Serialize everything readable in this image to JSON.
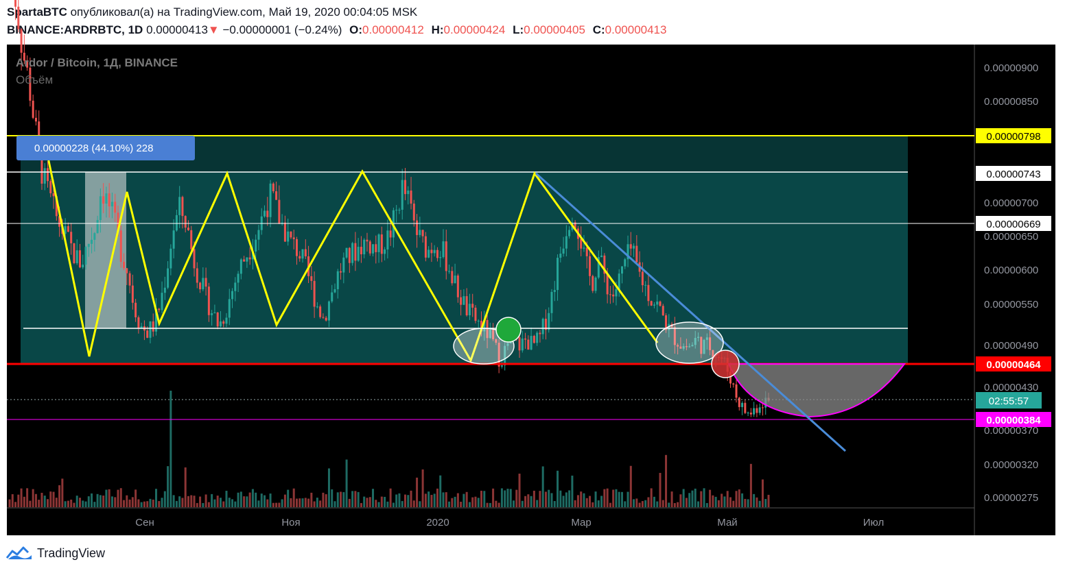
{
  "header": {
    "author": "SpartaBTC",
    "published_text": "опубликовал(а) на TradingView.com, Май 19, 2020 00:04:05 MSK",
    "symbol": "BINANCE:ARDRBTC, 1D",
    "price": "0.00000413",
    "change_arrow": "▼",
    "change": "−0.00000001 (−0.24%)",
    "o_label": "O:",
    "o_value": "0.00000412",
    "h_label": "H:",
    "h_value": "0.00000424",
    "l_label": "L:",
    "l_value": "0.00000405",
    "c_label": "C:",
    "c_value": "0.00000413"
  },
  "legend": {
    "title": "Ardor / Bitcoin, 1Д, BINANCE",
    "volume": "Объём"
  },
  "measure_label": "0.00000228 (44.10%) 228",
  "countdown": "02:55:57",
  "brand": "TradingView",
  "colors": {
    "background": "#000000",
    "range_fill": "#0d5f5f",
    "yellow": "#ffff00",
    "red": "#ff0000",
    "blue": "#4a8cd8",
    "magenta": "#ff00ff",
    "up": "#26a69a",
    "down": "#ef5350"
  },
  "chart_data": {
    "type": "candlestick",
    "y_axis_ticks": [
      "0.00000900",
      "0.00000850",
      "0.00000700",
      "0.00000650",
      "0.00000600",
      "0.00000550",
      "0.00000490",
      "0.00000430",
      "0.00000370",
      "0.00000320",
      "0.00000275"
    ],
    "x_axis_ticks": [
      "Сен",
      "Ноя",
      "2020",
      "Мар",
      "Май",
      "Июл"
    ],
    "price_levels": [
      {
        "name": "resistance-top",
        "value": 7.98e-06,
        "label": "0.00000798",
        "color": "#ffff00"
      },
      {
        "name": "range-high",
        "value": 7.43e-06,
        "label": "0.00000743",
        "color": "#ffffff"
      },
      {
        "name": "mid-level",
        "value": 6.69e-06,
        "label": "0.00000669",
        "color": "#ffffff"
      },
      {
        "name": "support-broken",
        "value": 4.64e-06,
        "label": "0.00000464",
        "color": "#ff0000"
      },
      {
        "name": "current-low",
        "value": 3.84e-06,
        "label": "0.00000384",
        "color": "#ff00ff"
      }
    ],
    "current_price": 4.13e-06,
    "price_path_y": [
      1.05e-05,
      9.9e-06,
      9.2e-06,
      8.7e-06,
      8e-06,
      7.4e-06,
      7.1e-06,
      6.8e-06,
      6.6e-06,
      6.4e-06,
      6.2e-06,
      6.1e-06,
      6.4e-06,
      6.6e-06,
      7.2e-06,
      7e-06,
      6.7e-06,
      6.3e-06,
      6e-06,
      5.5e-06,
      5.2e-06,
      5.1e-06,
      5.2e-06,
      5.5e-06,
      6e-06,
      6.6e-06,
      6.9e-06,
      6.7e-06,
      6.2e-06,
      5.9e-06,
      5.6e-06,
      5.4e-06,
      5.2e-06,
      5.4e-06,
      5.7e-06,
      6e-06,
      6.2e-06,
      6.4e-06,
      6.6e-06,
      6.9e-06,
      7.1e-06,
      6.8e-06,
      6.6e-06,
      6.4e-06,
      6.3e-06,
      6.1e-06,
      5.8e-06,
      5.5e-06,
      5.3e-06,
      5.6e-06,
      5.9e-06,
      6.1e-06,
      6.2e-06,
      6.3e-06,
      6.4e-06,
      6.4e-06,
      6.3e-06,
      6.4e-06,
      6.5e-06,
      6.8e-06,
      7.2e-06,
      7e-06,
      6.6e-06,
      6.4e-06,
      6.3e-06,
      6.4e-06,
      6.3e-06,
      6.1e-06,
      5.8e-06,
      5.6e-06,
      5.4e-06,
      5.3e-06,
      5.2e-06,
      5.1e-06,
      4.9e-06,
      4.7e-06,
      4.9e-06,
      5e-06,
      4.9e-06,
      5e-06,
      4.9e-06,
      5e-06,
      5.3e-06,
      5.7e-06,
      6.2e-06,
      6.6e-06,
      6.9e-06,
      6.6e-06,
      6.1e-06,
      5.8e-06,
      6.2e-06,
      5.9e-06,
      5.6e-06,
      5.8e-06,
      6.1e-06,
      6.3e-06,
      6e-06,
      5.8e-06,
      5.6e-06,
      5.5e-06,
      5.3e-06,
      5.1e-06,
      5e-06,
      4.9e-06,
      4.9e-06,
      5e-06,
      4.9e-06,
      4.9e-06,
      4.8e-06,
      4.7e-06,
      4.5e-06,
      4.2e-06,
      4e-06,
      3.9e-06,
      4e-06,
      4.1e-06,
      4.1e-06
    ],
    "zigzag": [
      7.4e-06,
      4.7e-06,
      7e-06,
      5.2e-06,
      7.4e-06,
      5.2e-06,
      7.4e-06,
      4.7e-06,
      7.4e-06,
      4.9e-06
    ]
  }
}
